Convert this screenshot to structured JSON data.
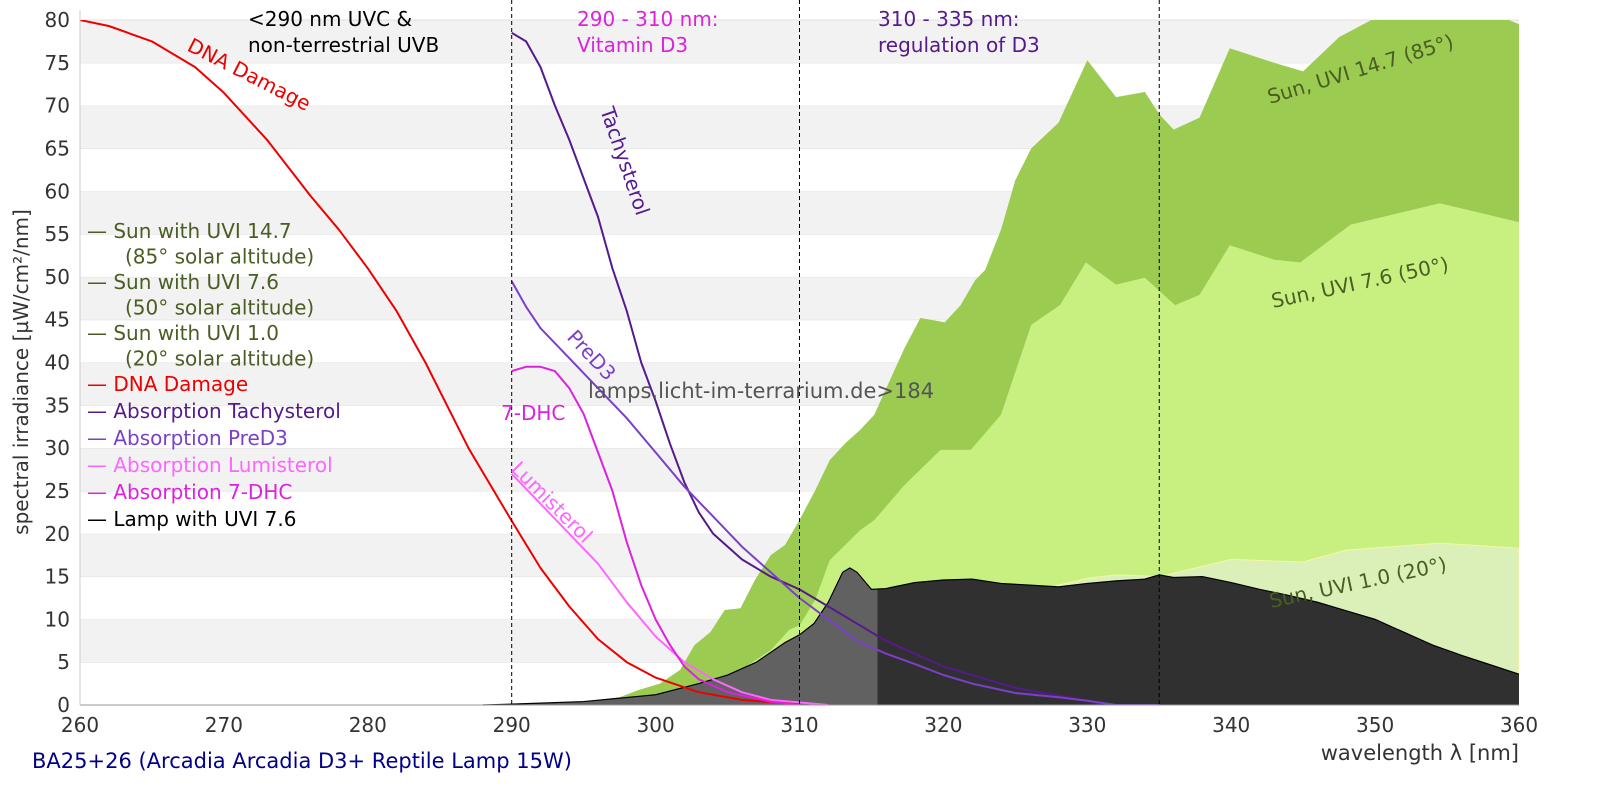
{
  "chart_data": {
    "type": "area",
    "xlabel": "wavelength λ [nm]",
    "ylabel": "spectral irradiance [µW/cm²/nm]",
    "xlim": [
      260,
      360
    ],
    "ylim": [
      0,
      80
    ],
    "xticks": [
      260,
      270,
      280,
      290,
      300,
      310,
      320,
      330,
      340,
      350,
      360
    ],
    "yticks": [
      0,
      5,
      10,
      15,
      20,
      25,
      30,
      35,
      40,
      45,
      50,
      55,
      60,
      65,
      70,
      75,
      80
    ],
    "grid": "horizontal alternating bands",
    "legend_placement": "left",
    "footer": "BA25+26 (Arcadia Arcadia D3+ Reptile Lamp 15W)",
    "watermark": "lamps.licht-im-terrarium.de>184",
    "region_lines": [
      290,
      310,
      335
    ],
    "region_labels": [
      {
        "lines": [
          "<290 nm UVC &",
          "non-terrestrial UVB"
        ],
        "color": "#000000"
      },
      {
        "lines": [
          "290 - 310 nm:",
          "Vitamin D3"
        ],
        "color": "#dd22dd"
      },
      {
        "lines": [
          "310 - 335 nm:",
          "regulation of D3"
        ],
        "color": "#551a8b"
      }
    ],
    "legend": [
      {
        "label": "— Sun with UVI 14.7",
        "sub": "(85° solar altitude)",
        "color": "#4a5e23"
      },
      {
        "label": "— Sun with UVI 7.6",
        "sub": "(50° solar altitude)",
        "color": "#4a5e23"
      },
      {
        "label": "— Sun with UVI 1.0",
        "sub": "(20° solar altitude)",
        "color": "#4a5e23"
      },
      {
        "label": "— DNA Damage",
        "color": "#ee0000"
      },
      {
        "label": "— Absorption Tachysterol",
        "color": "#551a8b"
      },
      {
        "label": "— Absorption PreD3",
        "color": "#7b3fc9"
      },
      {
        "label": "— Absorption Lumisterol",
        "color": "#ff66ff"
      },
      {
        "label": "— Absorption 7-DHC",
        "color": "#dd22dd"
      },
      {
        "label": "— Lamp with UVI 7.6",
        "color": "#000000"
      }
    ],
    "areas": [
      {
        "name": "Sun, UVI 14.7 (85°)",
        "color": "#9bcb50",
        "x": [
          293,
          297.5,
          298.9,
          300.3,
          301.7,
          302.7,
          303.8,
          304.8,
          305.9,
          306.9,
          308,
          309,
          310,
          311.1,
          312.1,
          313.2,
          314.2,
          315.2,
          316.3,
          317.3,
          318.4,
          320.1,
          321.2,
          322.2,
          322.9,
          324,
          325,
          326.1,
          328,
          330,
          332,
          334,
          335,
          336,
          337.8,
          339.9,
          343,
          345,
          347.5,
          350.3,
          355,
          360
        ],
        "y": [
          0,
          0.9,
          1.8,
          2.5,
          4.1,
          7,
          8.5,
          11.1,
          11.3,
          14.6,
          17.5,
          18.7,
          21.6,
          25.1,
          28.6,
          30.6,
          32.1,
          33.9,
          38,
          41.7,
          45.2,
          44.7,
          46.7,
          49.6,
          50.8,
          55.5,
          61.3,
          65,
          68,
          75.3,
          71,
          71.6,
          69,
          67.2,
          68.6,
          76.7,
          75,
          74,
          78,
          80.5,
          83,
          79.5
        ]
      },
      {
        "name": "Sun, UVI 7.6 (50°)",
        "color": "#c7f080",
        "x": [
          297,
          303,
          305.9,
          308,
          309.3,
          310,
          311.1,
          312.1,
          314.2,
          315.2,
          317.3,
          319.8,
          321.9,
          324,
          326.1,
          328.1,
          329.9,
          332,
          334,
          336.1,
          337.8,
          339.9,
          343,
          344.8,
          348.3,
          354.5,
          360
        ],
        "y": [
          0,
          1.8,
          4.1,
          6.4,
          8.8,
          9.3,
          12.3,
          16.9,
          20.4,
          21.6,
          25.7,
          29.8,
          29.8,
          33.9,
          44.4,
          46.7,
          51.7,
          49.1,
          49.9,
          46.7,
          47.9,
          53.7,
          52,
          51.7,
          56.1,
          58.6,
          56.4
        ]
      },
      {
        "name": "Sun, UVI 1.0 (20°)",
        "color": "#dbefb9",
        "x": [
          298,
          302,
          306,
          310,
          315.2,
          318.4,
          322,
          324,
          326,
          328,
          330,
          332,
          335,
          340,
          345,
          348,
          354.5,
          360
        ],
        "y": [
          0,
          0.3,
          0.8,
          1.8,
          4.7,
          7.6,
          8.2,
          9.7,
          12.8,
          14,
          14.8,
          15.2,
          15,
          17,
          16.7,
          18.1,
          18.9,
          18.3
        ]
      }
    ],
    "lamp": {
      "name": "Lamp with UVI 7.6",
      "color_uvb": "#616161",
      "color": "#303030",
      "split": 315.4,
      "x": [
        288,
        290,
        295,
        300,
        303,
        305,
        307,
        309,
        310,
        311,
        312,
        313,
        313.5,
        314,
        315,
        316,
        318,
        320,
        322,
        324,
        326,
        328,
        330,
        332,
        334,
        335,
        336,
        338,
        340,
        342,
        344,
        346,
        348,
        350,
        352,
        354,
        356,
        358,
        360
      ],
      "y": [
        0,
        0.1,
        0.4,
        1.2,
        2.5,
        3.5,
        5,
        7.3,
        8.2,
        9.5,
        12,
        15.5,
        16,
        15.5,
        13.5,
        13.6,
        14.3,
        14.6,
        14.7,
        14.2,
        14,
        13.8,
        14.2,
        14.5,
        14.7,
        15.2,
        14.9,
        15,
        14.3,
        13.5,
        12.8,
        12,
        11,
        10,
        8.5,
        7,
        5.8,
        4.7,
        3.6
      ]
    },
    "series": [
      {
        "name": "DNA Damage",
        "color": "#ee0000",
        "x": [
          260,
          262,
          265,
          268,
          270,
          273,
          276,
          278,
          280,
          282,
          284,
          287,
          290,
          292,
          294,
          296,
          298,
          300,
          303,
          306,
          310
        ],
        "y": [
          80,
          79.3,
          77.5,
          74.5,
          71.5,
          66,
          59.5,
          55.5,
          51,
          46,
          40,
          30,
          21.5,
          16,
          11.5,
          7.7,
          5,
          3.2,
          1.5,
          0.6,
          0.1
        ]
      },
      {
        "name": "Tachysterol",
        "color": "#551a8b",
        "x": [
          290,
          291,
          292,
          293,
          294,
          295,
          296,
          297,
          298,
          299,
          300,
          301,
          302,
          303,
          304,
          306,
          308,
          310,
          312,
          314,
          316,
          320,
          325,
          330,
          331
        ],
        "y": [
          78.5,
          77.5,
          74.5,
          70,
          66,
          61.5,
          57,
          51,
          46,
          40,
          35.5,
          30.5,
          26,
          22.5,
          20,
          17,
          15,
          13.5,
          11.5,
          9.5,
          7.5,
          4.5,
          2,
          0.5,
          0
        ]
      },
      {
        "name": "PreD3",
        "color": "#7b3fc9",
        "x": [
          290,
          291,
          292,
          294,
          296,
          298,
          300,
          302,
          304,
          306,
          308,
          310,
          312,
          314,
          316,
          318,
          320,
          322,
          325,
          328,
          330,
          332,
          335
        ],
        "y": [
          49.5,
          46.5,
          44,
          40.5,
          37,
          33.5,
          29.5,
          25.5,
          22,
          18.5,
          15.5,
          12.5,
          10,
          7.5,
          6,
          4.8,
          3.5,
          2.5,
          1.4,
          0.9,
          0.5,
          0,
          0
        ]
      },
      {
        "name": "Lumisterol",
        "color": "#ff66ff",
        "x": [
          290,
          292,
          294,
          296,
          298,
          300,
          302,
          304,
          306,
          308,
          312
        ],
        "y": [
          27,
          23.5,
          20,
          16.5,
          12,
          8,
          5,
          3,
          1.5,
          0.6,
          0
        ]
      },
      {
        "name": "7-DHC",
        "color": "#dd22dd",
        "x": [
          290,
          291,
          292,
          293,
          294,
          295,
          296,
          297,
          298,
          299,
          300,
          301,
          302,
          303,
          305,
          308,
          310
        ],
        "y": [
          39,
          39.5,
          39.5,
          39,
          37,
          34,
          29.5,
          25,
          19,
          14,
          10,
          7,
          4.5,
          3,
          1.5,
          0.4,
          0
        ]
      }
    ],
    "curve_labels": {
      "dna": "DNA Damage",
      "tachysterol": "Tachysterol",
      "pred3": "PreD3",
      "dhc": "7-DHC",
      "lumisterol": "Lumisterol",
      "sun147": "Sun, UVI 14.7 (85°)",
      "sun76": "Sun, UVI 7.6 (50°)",
      "sun10": "Sun, UVI 1.0 (20°)"
    }
  }
}
